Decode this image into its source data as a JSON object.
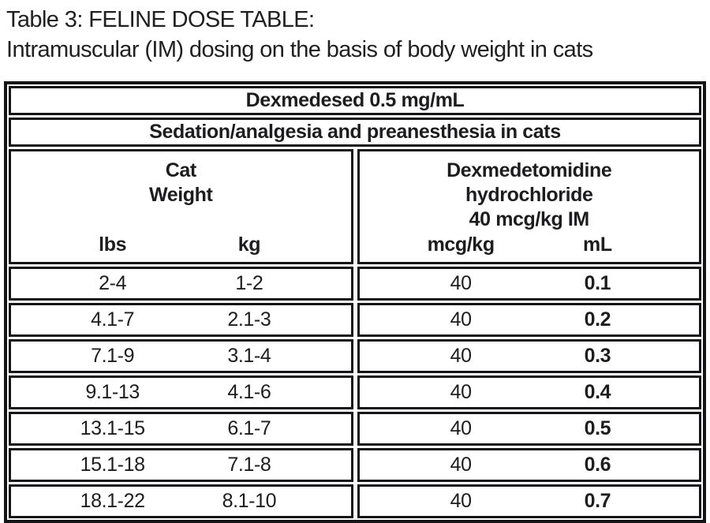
{
  "page": {
    "title_line1": "Table 3: FELINE DOSE TABLE:",
    "title_line2": "Intramuscular (IM) dosing on the basis of body weight in cats"
  },
  "table": {
    "product": "Dexmedesed 0.5 mg/mL",
    "indication": "Sedation/analgesia and preanesthesia in cats",
    "header": {
      "weight_group_line1": "Cat",
      "weight_group_line2": "Weight",
      "dose_group_line1": "Dexmedetomidine",
      "dose_group_line2": "hydrochloride",
      "dose_group_line3": "40 mcg/kg IM",
      "sub_columns": [
        "lbs",
        "kg",
        "mcg/kg",
        "mL"
      ]
    },
    "rows": [
      {
        "lbs": "2-4",
        "kg": "1-2",
        "mcg_kg": "40",
        "ml": "0.1"
      },
      {
        "lbs": "4.1-7",
        "kg": "2.1-3",
        "mcg_kg": "40",
        "ml": "0.2"
      },
      {
        "lbs": "7.1-9",
        "kg": "3.1-4",
        "mcg_kg": "40",
        "ml": "0.3"
      },
      {
        "lbs": "9.1-13",
        "kg": "4.1-6",
        "mcg_kg": "40",
        "ml": "0.4"
      },
      {
        "lbs": "13.1-15",
        "kg": "6.1-7",
        "mcg_kg": "40",
        "ml": "0.5"
      },
      {
        "lbs": "15.1-18",
        "kg": "7.1-8",
        "mcg_kg": "40",
        "ml": "0.6"
      },
      {
        "lbs": "18.1-22",
        "kg": "8.1-10",
        "mcg_kg": "40",
        "ml": "0.7"
      }
    ],
    "colors": {
      "border": "#151517",
      "text": "#1d1d1f",
      "background": "#ffffff"
    }
  }
}
